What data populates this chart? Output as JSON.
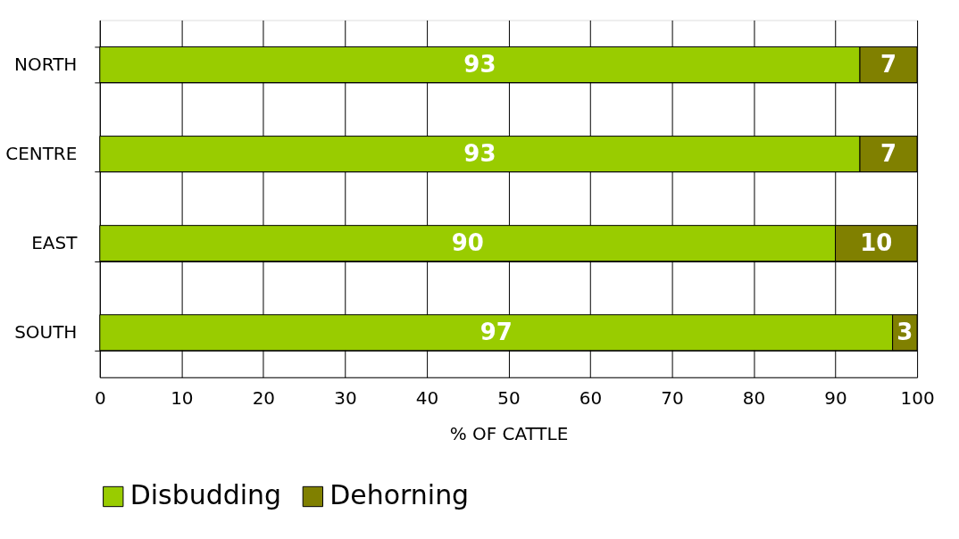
{
  "chart_data": {
    "type": "bar",
    "orientation": "horizontal",
    "stacked": true,
    "categories": [
      "NORTH",
      "CENTRE",
      "EAST",
      "SOUTH"
    ],
    "series": [
      {
        "name": "Disbudding",
        "color": "#99cc00",
        "values": [
          93,
          93,
          90,
          97
        ]
      },
      {
        "name": "Dehorning",
        "color": "#808000",
        "values": [
          7,
          7,
          10,
          3
        ]
      }
    ],
    "xlabel": "% OF CATTLE",
    "xlim": [
      0,
      100
    ],
    "xticks": [
      0,
      10,
      20,
      30,
      40,
      50,
      60,
      70,
      80,
      90,
      100
    ],
    "grid": true,
    "legend": "bottom",
    "data_labels": true
  }
}
